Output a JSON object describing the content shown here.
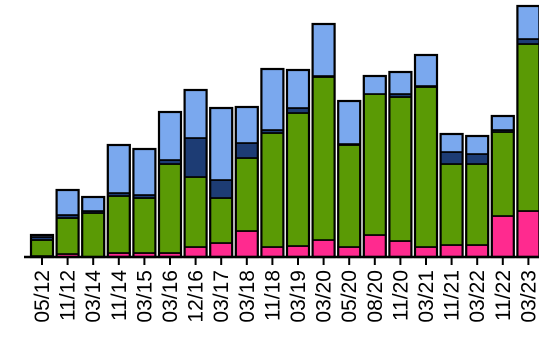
{
  "chart_data": {
    "type": "bar",
    "stacked": true,
    "categories": [
      "05/12",
      "11/12",
      "03/14",
      "11/14",
      "03/15",
      "03/16",
      "12/16",
      "03/17",
      "03/18",
      "11/18",
      "03/19",
      "03/20",
      "05/20",
      "08/20",
      "11/20",
      "03/21",
      "11/21",
      "03/22",
      "11/22",
      "03/23"
    ],
    "series": [
      {
        "color": "#ff2a8f",
        "values": [
          1,
          3,
          0,
          4,
          4,
          4,
          10,
          14,
          26,
          10,
          11,
          17,
          10,
          22,
          16,
          10,
          12,
          12,
          41,
          46
        ]
      },
      {
        "color": "#5a9a05",
        "values": [
          16,
          36,
          44,
          57,
          55,
          89,
          70,
          45,
          73,
          114,
          133,
          163,
          102,
          141,
          144,
          160,
          81,
          81,
          84,
          167
        ]
      },
      {
        "color": "#1d3c74",
        "values": [
          3,
          3,
          2,
          3,
          3,
          4,
          39,
          18,
          15,
          3,
          5,
          1,
          1,
          0,
          3,
          1,
          12,
          10,
          2,
          5
        ]
      },
      {
        "color": "#7aa8ee",
        "values": [
          2,
          25,
          14,
          48,
          46,
          48,
          48,
          72,
          36,
          61,
          38,
          52,
          43,
          18,
          22,
          31,
          18,
          18,
          14,
          33
        ]
      }
    ],
    "ylim": [
      0,
      240
    ],
    "grid": false,
    "legend": "none"
  }
}
